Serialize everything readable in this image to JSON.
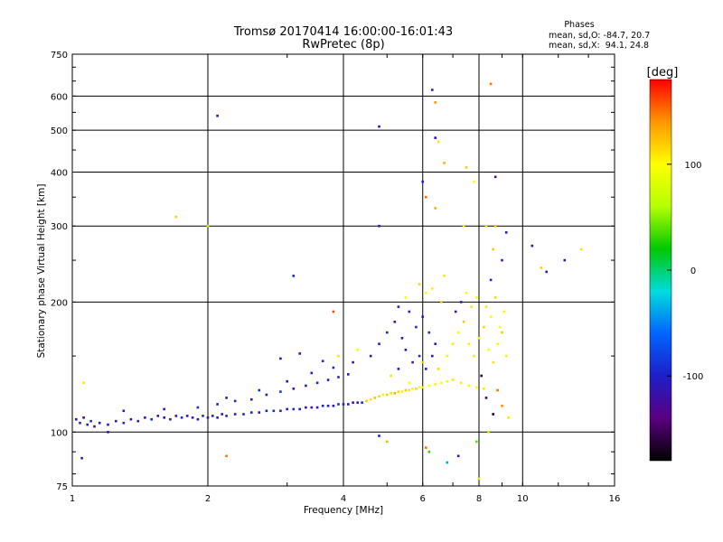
{
  "chart_data": {
    "type": "scatter",
    "title": "Tromsø 20170414 16:00:00-16:01:43",
    "subtitle": "RwPretec (8p)",
    "xlabel": "Frequency [MHz]",
    "ylabel": "Stationary phase Virtual Height [km]",
    "x_scale": "log",
    "y_scale": "log",
    "xlim": [
      1,
      16
    ],
    "ylim": [
      75,
      750
    ],
    "x_ticks": [
      1,
      2,
      4,
      6,
      8,
      10,
      16
    ],
    "y_ticks": [
      75,
      100,
      200,
      300,
      400,
      500,
      600,
      750
    ],
    "grid": true,
    "stats": {
      "header": "Phases",
      "line1": "mean, sd,O: -84.7, 20.7",
      "line2": "mean, sd,X:  94.1, 24.8"
    },
    "colorbar": {
      "label": "[deg]",
      "range": [
        -180,
        180
      ],
      "ticks": [
        100,
        0,
        -100
      ],
      "colors": [
        "#000000",
        "#5a0080",
        "#1e1ec8",
        "#0064ff",
        "#00dcdc",
        "#00c800",
        "#b4ff00",
        "#ffff00",
        "#ff9600",
        "#ff0000"
      ]
    },
    "points": [
      [
        1.02,
        107,
        -110
      ],
      [
        1.04,
        105,
        -95
      ],
      [
        1.06,
        108,
        -120
      ],
      [
        1.08,
        104,
        -100
      ],
      [
        1.1,
        106,
        -90
      ],
      [
        1.12,
        103,
        -130
      ],
      [
        1.15,
        105,
        -105
      ],
      [
        1.2,
        104,
        -115
      ],
      [
        1.25,
        106,
        -100
      ],
      [
        1.3,
        105,
        -95
      ],
      [
        1.35,
        107,
        -120
      ],
      [
        1.4,
        106,
        -100
      ],
      [
        1.45,
        108,
        -110
      ],
      [
        1.5,
        107,
        -95
      ],
      [
        1.55,
        109,
        -120
      ],
      [
        1.6,
        108,
        -105
      ],
      [
        1.65,
        107,
        -100
      ],
      [
        1.7,
        109,
        -115
      ],
      [
        1.75,
        108,
        -90
      ],
      [
        1.8,
        109,
        -120
      ],
      [
        1.85,
        108,
        -100
      ],
      [
        1.9,
        107,
        -110
      ],
      [
        1.95,
        109,
        -95
      ],
      [
        2.0,
        108,
        -115
      ],
      [
        2.05,
        109,
        -100
      ],
      [
        2.1,
        108,
        -120
      ],
      [
        2.15,
        110,
        -105
      ],
      [
        2.2,
        109,
        -95
      ],
      [
        2.3,
        110,
        -110
      ],
      [
        2.4,
        110,
        -100
      ],
      [
        2.5,
        111,
        -95
      ],
      [
        2.6,
        111,
        -115
      ],
      [
        2.7,
        112,
        -100
      ],
      [
        2.8,
        112,
        -90
      ],
      [
        2.9,
        112,
        -105
      ],
      [
        3.0,
        113,
        -110
      ],
      [
        3.1,
        113,
        -95
      ],
      [
        3.2,
        113,
        -100
      ],
      [
        3.3,
        114,
        -120
      ],
      [
        3.4,
        114,
        -100
      ],
      [
        3.5,
        114,
        -110
      ],
      [
        3.6,
        115,
        -95
      ],
      [
        3.7,
        115,
        -100
      ],
      [
        3.8,
        115,
        -105
      ],
      [
        3.9,
        116,
        -95
      ],
      [
        4.0,
        116,
        -110
      ],
      [
        4.1,
        116,
        -100
      ],
      [
        4.2,
        117,
        -115
      ],
      [
        4.3,
        117,
        -100
      ],
      [
        4.4,
        117,
        -95
      ],
      [
        4.5,
        118,
        120
      ],
      [
        4.6,
        119,
        110
      ],
      [
        4.7,
        120,
        125
      ],
      [
        4.8,
        121,
        115
      ],
      [
        4.9,
        122,
        105
      ],
      [
        5.0,
        122,
        120
      ],
      [
        5.1,
        123,
        110
      ],
      [
        5.2,
        123,
        130
      ],
      [
        5.3,
        124,
        115
      ],
      [
        5.4,
        124,
        105
      ],
      [
        5.5,
        125,
        120
      ],
      [
        5.6,
        125,
        110
      ],
      [
        5.7,
        126,
        95
      ],
      [
        5.8,
        126,
        115
      ],
      [
        5.9,
        127,
        100
      ],
      [
        6.0,
        127,
        110
      ],
      [
        6.2,
        128,
        95
      ],
      [
        6.4,
        129,
        105
      ],
      [
        6.6,
        130,
        100
      ],
      [
        6.8,
        131,
        90
      ],
      [
        7.0,
        132,
        110
      ],
      [
        7.3,
        130,
        105
      ],
      [
        7.6,
        128,
        95
      ],
      [
        7.9,
        127,
        100
      ],
      [
        8.2,
        126,
        110
      ],
      [
        1.3,
        112,
        -100
      ],
      [
        1.6,
        113,
        -105
      ],
      [
        1.9,
        114,
        -90
      ],
      [
        2.1,
        116,
        -110
      ],
      [
        2.3,
        118,
        -95
      ],
      [
        2.5,
        119,
        -100
      ],
      [
        2.7,
        122,
        -105
      ],
      [
        2.9,
        124,
        -90
      ],
      [
        3.1,
        126,
        -110
      ],
      [
        3.3,
        128,
        -100
      ],
      [
        3.5,
        130,
        -95
      ],
      [
        3.7,
        132,
        -115
      ],
      [
        3.9,
        134,
        -100
      ],
      [
        4.1,
        136,
        -105
      ],
      [
        2.2,
        120,
        -100
      ],
      [
        2.6,
        125,
        -90
      ],
      [
        3.0,
        131,
        -110
      ],
      [
        3.4,
        137,
        -100
      ],
      [
        3.8,
        141,
        -95
      ],
      [
        4.2,
        145,
        -115
      ],
      [
        2.9,
        148,
        -100
      ],
      [
        3.2,
        152,
        -110
      ],
      [
        3.6,
        146,
        -90
      ],
      [
        3.9,
        150,
        110
      ],
      [
        4.3,
        155,
        100
      ],
      [
        4.6,
        150,
        -100
      ],
      [
        4.8,
        160,
        -110
      ],
      [
        5.0,
        170,
        -95
      ],
      [
        5.2,
        180,
        -120
      ],
      [
        5.4,
        165,
        -100
      ],
      [
        5.6,
        190,
        -110
      ],
      [
        5.8,
        175,
        -95
      ],
      [
        6.0,
        185,
        -105
      ],
      [
        6.2,
        170,
        -90
      ],
      [
        6.4,
        160,
        -100
      ],
      [
        5.5,
        155,
        -120
      ],
      [
        5.7,
        145,
        -110
      ],
      [
        5.9,
        150,
        -95
      ],
      [
        6.1,
        140,
        -100
      ],
      [
        6.3,
        150,
        -115
      ],
      [
        5.3,
        140,
        -100
      ],
      [
        5.1,
        135,
        110
      ],
      [
        5.6,
        130,
        100
      ],
      [
        6.0,
        145,
        120
      ],
      [
        6.5,
        140,
        115
      ],
      [
        6.8,
        150,
        105
      ],
      [
        7.0,
        160,
        110
      ],
      [
        7.2,
        170,
        95
      ],
      [
        7.4,
        180,
        120
      ],
      [
        7.6,
        160,
        105
      ],
      [
        7.8,
        150,
        110
      ],
      [
        8.0,
        165,
        95
      ],
      [
        8.2,
        175,
        115
      ],
      [
        8.4,
        155,
        100
      ],
      [
        8.6,
        145,
        110
      ],
      [
        8.8,
        160,
        95
      ],
      [
        9.0,
        170,
        120
      ],
      [
        9.2,
        150,
        105
      ],
      [
        7.1,
        190,
        -110
      ],
      [
        7.3,
        200,
        -100
      ],
      [
        7.5,
        210,
        100
      ],
      [
        7.7,
        195,
        110
      ],
      [
        7.9,
        205,
        95
      ],
      [
        6.6,
        200,
        120
      ],
      [
        6.3,
        215,
        105
      ],
      [
        6.7,
        230,
        110
      ],
      [
        6.1,
        210,
        100
      ],
      [
        5.9,
        220,
        115
      ],
      [
        5.5,
        205,
        95
      ],
      [
        5.3,
        195,
        -100
      ],
      [
        8.3,
        195,
        110
      ],
      [
        8.5,
        185,
        100
      ],
      [
        8.7,
        205,
        115
      ],
      [
        8.9,
        175,
        95
      ],
      [
        9.1,
        190,
        105
      ],
      [
        8.1,
        135,
        -160
      ],
      [
        8.3,
        120,
        -150
      ],
      [
        8.6,
        110,
        -170
      ],
      [
        8.8,
        125,
        150
      ],
      [
        9.0,
        115,
        140
      ],
      [
        8.4,
        100,
        60
      ],
      [
        7.9,
        95,
        40
      ],
      [
        6.2,
        90,
        30
      ],
      [
        6.8,
        85,
        -40
      ],
      [
        8.0,
        78,
        80
      ],
      [
        6.1,
        92,
        150
      ],
      [
        7.2,
        88,
        -120
      ],
      [
        5.0,
        95,
        130
      ],
      [
        4.8,
        98,
        -100
      ],
      [
        9.3,
        108,
        110
      ],
      [
        9.0,
        250,
        -100
      ],
      [
        8.6,
        265,
        120
      ],
      [
        8.3,
        300,
        110
      ],
      [
        8.5,
        225,
        -100
      ],
      [
        10.5,
        270,
        -100
      ],
      [
        11.0,
        240,
        120
      ],
      [
        13.5,
        265,
        110
      ],
      [
        11.3,
        235,
        -100
      ],
      [
        12.4,
        250,
        -110
      ],
      [
        6.3,
        620,
        -100
      ],
      [
        6.4,
        580,
        140
      ],
      [
        8.5,
        640,
        150
      ],
      [
        6.4,
        480,
        -120
      ],
      [
        6.5,
        470,
        110
      ],
      [
        6.7,
        420,
        130
      ],
      [
        7.5,
        410,
        120
      ],
      [
        6.0,
        380,
        -100
      ],
      [
        8.7,
        390,
        -110
      ],
      [
        7.8,
        380,
        100
      ],
      [
        6.1,
        350,
        150
      ],
      [
        6.4,
        330,
        130
      ],
      [
        2.1,
        540,
        -100
      ],
      [
        4.8,
        510,
        -120
      ],
      [
        4.8,
        300,
        -110
      ],
      [
        1.7,
        315,
        120
      ],
      [
        2.0,
        300,
        60
      ],
      [
        3.1,
        230,
        -100
      ],
      [
        3.8,
        190,
        160
      ],
      [
        1.06,
        130,
        110
      ],
      [
        2.2,
        88,
        150
      ],
      [
        1.05,
        87,
        -100
      ],
      [
        1.2,
        100,
        -110
      ],
      [
        7.4,
        300,
        110
      ],
      [
        8.7,
        300,
        120
      ],
      [
        9.2,
        290,
        -100
      ]
    ]
  }
}
